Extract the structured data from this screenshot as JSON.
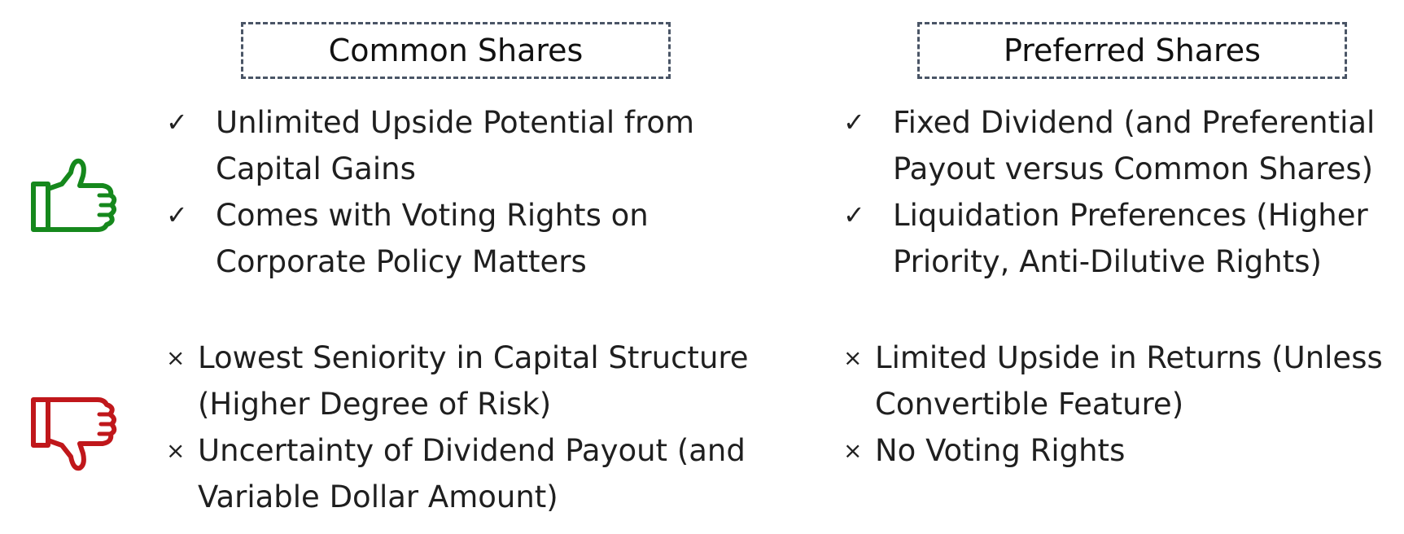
{
  "headers": {
    "common": "Common Shares",
    "preferred": "Preferred Shares"
  },
  "marks": {
    "check": "✓",
    "cross": "×"
  },
  "icons": {
    "pros": "thumbs-up-icon",
    "cons": "thumbs-down-icon"
  },
  "colors": {
    "pros_icon": "#15881c",
    "cons_icon": "#c0171b",
    "header_border": "#4a5566"
  },
  "common": {
    "pros": [
      "Unlimited Upside Potential from Capital Gains",
      "Comes with Voting Rights on Corporate Policy Matters"
    ],
    "cons": [
      "Lowest Seniority in Capital Structure (Higher Degree of Risk)",
      "Uncertainty of Dividend Payout (and Variable Dollar Amount)"
    ]
  },
  "preferred": {
    "pros": [
      "Fixed Dividend (and Preferential Payout versus Common Shares)",
      "Liquidation Preferences (Higher Priority, Anti-Dilutive Rights)"
    ],
    "cons": [
      "Limited Upside in Returns (Unless Convertible Feature)",
      "No Voting Rights"
    ]
  }
}
